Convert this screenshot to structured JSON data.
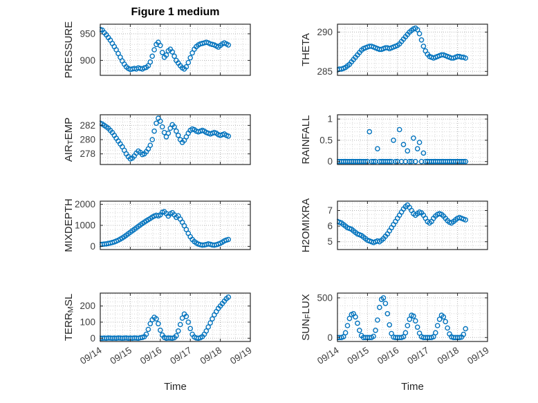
{
  "title": "Figure 1 medium",
  "marker": {
    "shape": "circle-open",
    "color": "#0072BD"
  },
  "style": {
    "axis_color": "#262626",
    "tick_color": "#3d3d3d",
    "label_color": "#262626",
    "major_grid_color": "#b3b3b3",
    "minor_grid_color": "#d2d2d2"
  },
  "xaxis": {
    "label": "Time",
    "xlim": [
      0,
      5
    ],
    "ticks": [
      0,
      1,
      2,
      3,
      4,
      5
    ],
    "tick_labels": [
      "09/14",
      "09/15",
      "09/16",
      "09/17",
      "09/18",
      "09/19"
    ],
    "minor_step": 0.25,
    "grid": true
  },
  "time_days": [
    0,
    0.067,
    0.133,
    0.2,
    0.267,
    0.333,
    0.4,
    0.467,
    0.533,
    0.6,
    0.667,
    0.733,
    0.8,
    0.867,
    0.933,
    1,
    1.067,
    1.133,
    1.2,
    1.267,
    1.333,
    1.4,
    1.467,
    1.533,
    1.6,
    1.667,
    1.733,
    1.8,
    1.867,
    1.933,
    2,
    2.067,
    2.133,
    2.2,
    2.267,
    2.333,
    2.4,
    2.467,
    2.533,
    2.6,
    2.667,
    2.733,
    2.8,
    2.867,
    2.933,
    3,
    3.067,
    3.133,
    3.2,
    3.267,
    3.333,
    3.4,
    3.467,
    3.533,
    3.6,
    3.667,
    3.733,
    3.8,
    3.867,
    3.933,
    4,
    4.067,
    4.133,
    4.2,
    4.267
  ],
  "chart_data": [
    {
      "type": "scatter",
      "name": "pressure",
      "ylabel": {
        "pre": "PRESSURE",
        "sub": "",
        "post": ""
      },
      "ylim": [
        872,
        968
      ],
      "yticks": [
        900,
        950
      ],
      "ytick_labels": [
        "900",
        "950"
      ],
      "yminor_step": 10,
      "y": [
        958,
        957,
        952,
        948,
        943,
        938,
        932,
        926,
        920,
        913,
        906,
        899,
        893,
        888,
        885,
        883,
        884,
        885,
        884,
        886,
        885,
        884,
        886,
        887,
        890,
        897,
        908,
        920,
        930,
        934,
        928,
        915,
        906,
        910,
        918,
        921,
        916,
        908,
        900,
        895,
        890,
        886,
        884,
        888,
        896,
        905,
        914,
        921,
        926,
        929,
        931,
        932,
        933,
        934,
        933,
        931,
        930,
        929,
        927,
        925,
        928,
        931,
        933,
        931,
        929
      ]
    },
    {
      "type": "scatter",
      "name": "theta",
      "ylabel": {
        "pre": "THETA",
        "sub": "",
        "post": ""
      },
      "ylim": [
        284.5,
        291
      ],
      "yticks": [
        285,
        290
      ],
      "ytick_labels": [
        "285",
        "290"
      ],
      "yminor_step": 0.5,
      "y": [
        285.2,
        285.3,
        285.3,
        285.4,
        285.5,
        285.7,
        285.9,
        286.2,
        286.5,
        286.8,
        287.1,
        287.4,
        287.7,
        287.9,
        288.0,
        288.1,
        288.2,
        288.2,
        288.1,
        288.0,
        287.9,
        287.8,
        287.8,
        287.9,
        288.0,
        288.0,
        287.9,
        288.0,
        288.1,
        288.2,
        288.3,
        288.5,
        288.8,
        289.1,
        289.4,
        289.7,
        290.0,
        290.2,
        290.4,
        290.5,
        290.3,
        289.8,
        289.0,
        288.2,
        287.6,
        287.2,
        286.9,
        286.8,
        286.7,
        286.8,
        286.9,
        287.0,
        287.1,
        287.1,
        287.0,
        286.9,
        286.8,
        286.7,
        286.7,
        286.8,
        286.9,
        286.9,
        286.8,
        286.8,
        286.7
      ]
    },
    {
      "type": "scatter",
      "name": "air-temp",
      "ylabel": {
        "pre": "AIR",
        "sub": "T",
        "post": "EMP"
      },
      "ylim": [
        276.5,
        283.5
      ],
      "yticks": [
        278,
        280,
        282
      ],
      "ytick_labels": [
        "278",
        "280",
        "282"
      ],
      "yminor_step": 0.5,
      "y": [
        282.3,
        282.2,
        282.0,
        281.8,
        281.6,
        281.3,
        281.0,
        280.6,
        280.2,
        279.8,
        279.4,
        279.0,
        278.5,
        278.0,
        277.6,
        277.3,
        277.4,
        277.7,
        278.1,
        278.4,
        278.2,
        277.9,
        278.0,
        278.3,
        278.7,
        279.2,
        280.0,
        281.2,
        282.3,
        283.0,
        282.6,
        281.8,
        281.0,
        280.4,
        280.9,
        281.6,
        282.1,
        281.8,
        281.2,
        280.6,
        280.0,
        279.6,
        279.9,
        280.4,
        280.9,
        281.3,
        281.5,
        281.4,
        281.2,
        281.1,
        281.2,
        281.3,
        281.2,
        281.0,
        280.9,
        280.8,
        280.9,
        281.0,
        280.9,
        280.7,
        280.6,
        280.7,
        280.8,
        280.6,
        280.5
      ]
    },
    {
      "type": "scatter",
      "name": "rainfall",
      "ylabel": {
        "pre": "RAINFALL",
        "sub": "",
        "post": ""
      },
      "ylim": [
        -0.07,
        1.1
      ],
      "yticks": [
        0,
        0.5,
        1
      ],
      "ytick_labels": [
        "0",
        "0.5",
        "1"
      ],
      "yminor_step": 0.1,
      "y": [
        0,
        0,
        0,
        0,
        0,
        0,
        0,
        0,
        0,
        0,
        0,
        0,
        0,
        0,
        0,
        0,
        0.7,
        0,
        0,
        0,
        0.3,
        0,
        0,
        0,
        0,
        0,
        0,
        0,
        0.5,
        0,
        0,
        0.75,
        0,
        0.4,
        0,
        0.25,
        0,
        0,
        0.55,
        0,
        0.3,
        0.45,
        0,
        0.2,
        0,
        0,
        0,
        0,
        0,
        0,
        0,
        0,
        0,
        0,
        0,
        0,
        0,
        0,
        0,
        0,
        0,
        0,
        0,
        0,
        0
      ]
    },
    {
      "type": "scatter",
      "name": "mixdepth",
      "ylabel": {
        "pre": "MIXDEPTH",
        "sub": "",
        "post": ""
      },
      "ylim": [
        -150,
        2150
      ],
      "yticks": [
        0,
        1000,
        2000
      ],
      "ytick_labels": [
        "0",
        "1000",
        "2000"
      ],
      "yminor_step": 200,
      "y": [
        90,
        100,
        110,
        120,
        140,
        160,
        185,
        215,
        250,
        295,
        345,
        400,
        460,
        530,
        600,
        670,
        740,
        810,
        880,
        950,
        1020,
        1090,
        1150,
        1210,
        1270,
        1330,
        1390,
        1440,
        1480,
        1450,
        1500,
        1620,
        1650,
        1560,
        1440,
        1550,
        1600,
        1500,
        1380,
        1450,
        1300,
        1150,
        980,
        800,
        620,
        460,
        330,
        230,
        160,
        110,
        80,
        60,
        70,
        90,
        120,
        100,
        70,
        60,
        80,
        110,
        150,
        200,
        260,
        300,
        330
      ]
    },
    {
      "type": "scatter",
      "name": "h2omixra",
      "ylabel": {
        "pre": "H2OMIXRA",
        "sub": "",
        "post": ""
      },
      "ylim": [
        4.5,
        7.6
      ],
      "yticks": [
        5,
        6,
        7
      ],
      "ytick_labels": [
        "5",
        "6",
        "7"
      ],
      "yminor_step": 0.25,
      "y": [
        6.3,
        6.25,
        6.2,
        6.1,
        6.0,
        5.9,
        5.85,
        5.8,
        5.7,
        5.6,
        5.5,
        5.45,
        5.4,
        5.3,
        5.2,
        5.1,
        5.05,
        5.0,
        4.95,
        5.0,
        5.05,
        5.0,
        5.1,
        5.2,
        5.35,
        5.5,
        5.7,
        5.9,
        6.1,
        6.3,
        6.5,
        6.7,
        6.9,
        7.1,
        7.25,
        7.35,
        7.2,
        7.0,
        6.8,
        6.7,
        6.8,
        6.9,
        6.85,
        6.7,
        6.5,
        6.3,
        6.2,
        6.3,
        6.5,
        6.65,
        6.75,
        6.8,
        6.75,
        6.65,
        6.5,
        6.35,
        6.25,
        6.2,
        6.3,
        6.4,
        6.5,
        6.55,
        6.5,
        6.45,
        6.4
      ]
    },
    {
      "type": "scatter",
      "name": "terr-msl",
      "ylabel": {
        "pre": "TERR",
        "sub": "M",
        "post": "SL"
      },
      "ylim": [
        -20,
        280
      ],
      "yticks": [
        0,
        100,
        200
      ],
      "ytick_labels": [
        "0",
        "100",
        "200"
      ],
      "yminor_step": 25,
      "y": [
        0,
        0,
        1,
        0,
        2,
        1,
        0,
        1,
        0,
        2,
        1,
        0,
        1,
        2,
        0,
        1,
        0,
        2,
        1,
        0,
        3,
        5,
        10,
        25,
        55,
        90,
        115,
        130,
        120,
        90,
        50,
        20,
        5,
        0,
        2,
        1,
        0,
        3,
        15,
        45,
        85,
        125,
        150,
        135,
        100,
        60,
        25,
        8,
        2,
        0,
        3,
        10,
        25,
        45,
        70,
        95,
        120,
        145,
        165,
        185,
        200,
        215,
        230,
        245,
        255
      ]
    },
    {
      "type": "scatter",
      "name": "sun-flux",
      "ylabel": {
        "pre": "SUN",
        "sub": "F",
        "post": "LUX"
      },
      "ylim": [
        -50,
        560
      ],
      "yticks": [
        0,
        500
      ],
      "ytick_labels": [
        "0",
        "500"
      ],
      "yminor_step": 100,
      "y": [
        0,
        0,
        0,
        10,
        60,
        150,
        240,
        290,
        300,
        260,
        180,
        90,
        25,
        0,
        0,
        0,
        0,
        0,
        15,
        90,
        220,
        380,
        480,
        500,
        430,
        300,
        160,
        50,
        5,
        0,
        0,
        0,
        0,
        10,
        60,
        150,
        230,
        280,
        270,
        210,
        130,
        55,
        10,
        0,
        0,
        0,
        0,
        0,
        10,
        60,
        150,
        230,
        280,
        260,
        200,
        120,
        45,
        8,
        0,
        0,
        0,
        0,
        5,
        40,
        110
      ]
    }
  ]
}
